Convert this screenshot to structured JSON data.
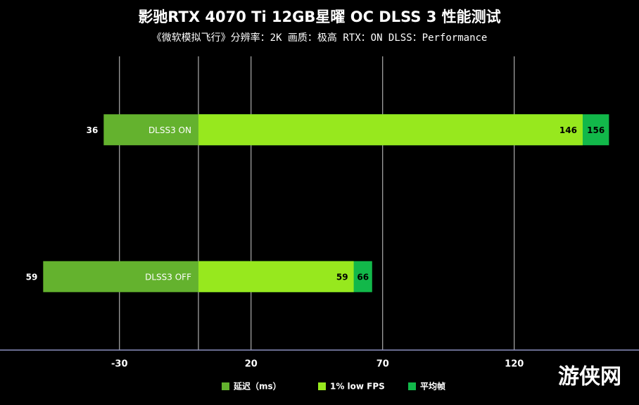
{
  "chart_data": {
    "type": "bar",
    "title": "影驰RTX 4070 Ti 12GB星曜 OC DLSS 3 性能测试",
    "subtitle": "《微软模拟飞行》分辨率：2K 画质：极高  RTX：ON  DLSS：Performance",
    "categories": [
      "DLSS3 ON",
      "DLSS3 OFF"
    ],
    "series": [
      {
        "name": "延迟（ms）",
        "color": "#64b22e",
        "values": [
          -36,
          -59
        ],
        "value_labels": [
          "36",
          "59"
        ]
      },
      {
        "name": "平均帧",
        "color": "#12b84a",
        "values": [
          156,
          66
        ]
      },
      {
        "name": "1% low FPS",
        "color": "#97e81e",
        "values": [
          146,
          59
        ]
      }
    ],
    "legend_order": [
      0,
      2,
      1
    ],
    "xlim": [
      -75.4,
      166.6
    ],
    "xticks": [
      -30,
      20,
      70,
      120
    ],
    "grid": true,
    "watermark": "游侠网"
  }
}
